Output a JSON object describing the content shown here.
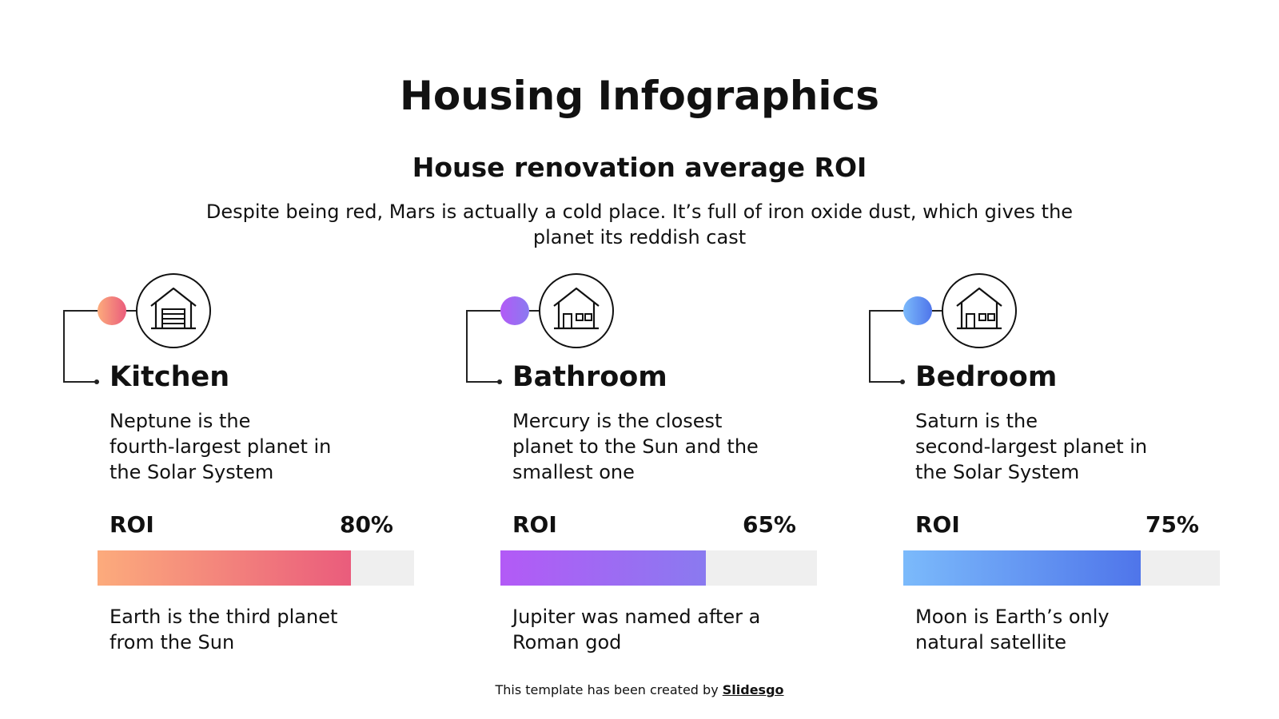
{
  "title": "Housing Infographics",
  "subtitle": "House renovation average ROI",
  "description": [
    "Despite being red, Mars is actually a cold place. It’s full of iron oxide dust, which gives the",
    "planet its reddish cast"
  ],
  "xlim": [
    0,
    100
  ],
  "items": [
    {
      "title": "Kitchen",
      "description": [
        "Neptune is the",
        "fourth-largest planet in",
        "the Solar System"
      ],
      "metric": "ROI",
      "value": 80,
      "value_label": "80%",
      "note": [
        "Earth is the third planet",
        "from the Sun"
      ],
      "colors": [
        "#fcab7c",
        "#ea5c7c"
      ]
    },
    {
      "title": "Bathroom",
      "description": [
        "Mercury is the closest",
        "planet to the Sun and the",
        "smallest one"
      ],
      "metric": "ROI",
      "value": 65,
      "value_label": "65%",
      "note": [
        "Jupiter was named after a",
        "Roman god"
      ],
      "colors": [
        "#b35af6",
        "#8a7af0"
      ]
    },
    {
      "title": "Bedroom",
      "description": [
        "Saturn is the",
        "second-largest planet in",
        "the Solar System"
      ],
      "metric": "ROI",
      "value": 75,
      "value_label": "75%",
      "note": [
        "Moon is Earth’s only",
        "natural satellite"
      ],
      "colors": [
        "#7bbafb",
        "#4f75ea"
      ]
    }
  ],
  "footer": {
    "text": "This template has been created by",
    "link": "Slidesgo"
  }
}
